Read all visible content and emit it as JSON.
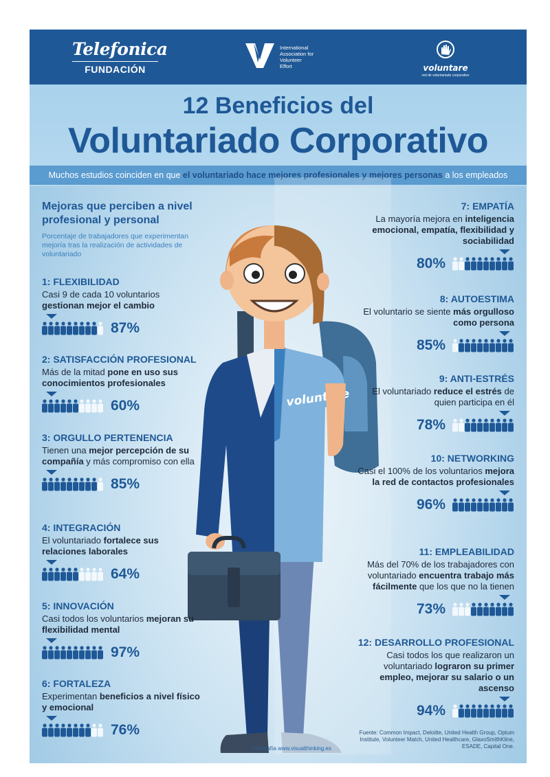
{
  "brands": {
    "telefonica": {
      "name": "Telefonica",
      "sub": "FUNDACIÓN"
    },
    "iave": {
      "lines": [
        "International",
        "Association for",
        "Volunteer",
        "Effort"
      ]
    },
    "voluntare": {
      "name": "voluntare",
      "sub": "red de voluntariado corporativo"
    }
  },
  "title": {
    "line1": "12 Beneficios del",
    "line2": "Voluntariado Corporativo"
  },
  "subtitle": {
    "pre": "Muchos estudios coinciden en que ",
    "bold": "el voluntariado hace mejores profesionales y mejores personas",
    "post": " a los empleados"
  },
  "intro": {
    "heading": "Mejoras que perciben a nivel profesional y personal",
    "desc": "Porcentaje de trabajadores que experimentan mejoría tras la realización de actividades de voluntariado"
  },
  "colors": {
    "dark_blue": "#1f5896",
    "person_dark": "#1f5896",
    "person_light": "#f2f8fc"
  },
  "benefits": [
    {
      "title": "1: FLEXIBILIDAD",
      "desc": [
        {
          "t": "Casi 9 de cada 10 voluntarios "
        },
        {
          "t": "gestionan mejor el cambio",
          "b": true
        }
      ],
      "pct": "87%",
      "filled": 8.7
    },
    {
      "title": "2: SATISFACCIÓN PROFESIONAL",
      "desc": [
        {
          "t": "Más de la mitad "
        },
        {
          "t": "pone en uso sus conocimientos profesionales",
          "b": true
        }
      ],
      "pct": "60%",
      "filled": 6
    },
    {
      "title": "3: ORGULLO PERTENENCIA",
      "desc": [
        {
          "t": "Tienen una "
        },
        {
          "t": "mejor percepción de su compañía",
          "b": true
        },
        {
          "t": " y más compromiso con ella"
        }
      ],
      "pct": "85%",
      "filled": 8.5
    },
    {
      "title": "4: INTEGRACIÓN",
      "desc": [
        {
          "t": "El voluntariado "
        },
        {
          "t": "fortalece sus relaciones laborales",
          "b": true
        }
      ],
      "pct": "64%",
      "filled": 6.4
    },
    {
      "title": "5: INNOVACIÓN",
      "desc": [
        {
          "t": "Casi todos los voluntarios "
        },
        {
          "t": "mejoran su flexibilidad mental",
          "b": true
        }
      ],
      "pct": "97%",
      "filled": 9.7
    },
    {
      "title": "6: FORTALEZA",
      "desc": [
        {
          "t": "Experimentan "
        },
        {
          "t": "beneficios a nivel físico y emocional",
          "b": true
        }
      ],
      "pct": "76%",
      "filled": 7.6
    },
    {
      "title": "7: EMPATÍA",
      "desc": [
        {
          "t": "La mayoría mejora en "
        },
        {
          "t": "inteligencia emocional, empatía, flexibilidad y sociabilidad",
          "b": true
        }
      ],
      "pct": "80%",
      "filled": 8
    },
    {
      "title": "8: AUTOESTIMA",
      "desc": [
        {
          "t": "El voluntario se siente "
        },
        {
          "t": "más orgulloso como persona",
          "b": true
        }
      ],
      "pct": "85%",
      "filled": 8.5
    },
    {
      "title": "9: ANTI-ESTRÉS",
      "desc": [
        {
          "t": "El voluntariado "
        },
        {
          "t": "reduce el estrés",
          "b": true
        },
        {
          "t": " de quien participa en él"
        }
      ],
      "pct": "78%",
      "filled": 7.8
    },
    {
      "title": "10: NETWORKING",
      "desc": [
        {
          "t": "Casi el 100% de los voluntarios "
        },
        {
          "t": "mejora la red de contactos profesionales",
          "b": true
        }
      ],
      "pct": "96%",
      "filled": 9.6
    },
    {
      "title": "11: EMPLEABILIDAD",
      "desc": [
        {
          "t": "Más del 70% de los trabajadores con voluntariado "
        },
        {
          "t": "encuentra trabajo más fácilmente",
          "b": true
        },
        {
          "t": " que los que no la tienen"
        }
      ],
      "pct": "73%",
      "filled": 7.3
    },
    {
      "title": "12: DESARROLLO PROFESIONAL",
      "desc": [
        {
          "t": "Casi todos los que realizaron un voluntariado "
        },
        {
          "t": "lograron su primer empleo, mejorar su salario o un ascenso",
          "b": true
        }
      ],
      "pct": "94%",
      "filled": 9.4
    }
  ],
  "credit": {
    "label": "Infografía ",
    "url": "www.visualthinking.es"
  },
  "sources": "Fuente: Common Impact, Deloitte, United Health Group, Optum Institute, Volunteer Match, United Healthcare, GlaxoSmithKline, ESADE, Capital One.",
  "illustration": {
    "shirt_text": "voluntare"
  }
}
